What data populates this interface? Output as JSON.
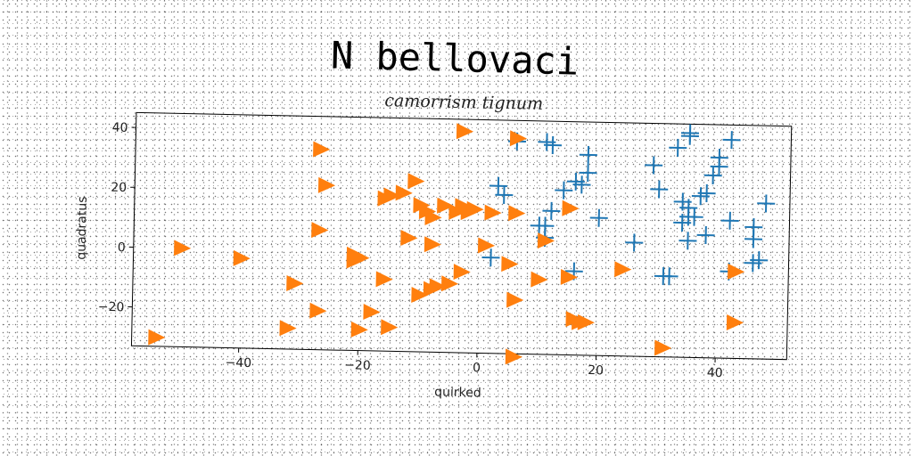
{
  "chart_data": {
    "type": "scatter",
    "title": "N bellovaci",
    "subtitle": "camorrism tignum",
    "xlabel": "quirked",
    "ylabel": "quadratus",
    "xlim": [
      -58,
      52
    ],
    "ylim": [
      -33,
      45
    ],
    "xticks": [
      -40,
      -20,
      0,
      20,
      40
    ],
    "yticks": [
      -20,
      0,
      20,
      40
    ],
    "grid": false,
    "series": [
      {
        "color": "#1f77b4",
        "marker": "plus",
        "points": [
          [
            6,
            38
          ],
          [
            11,
            38
          ],
          [
            12,
            37
          ],
          [
            18,
            34
          ],
          [
            14,
            22
          ],
          [
            16,
            25
          ],
          [
            18,
            28
          ],
          [
            17,
            24
          ],
          [
            3,
            23
          ],
          [
            4,
            20
          ],
          [
            2,
            -1
          ],
          [
            10,
            10
          ],
          [
            11,
            10
          ],
          [
            12,
            15
          ],
          [
            11,
            6
          ],
          [
            16,
            -5
          ],
          [
            20,
            13
          ],
          [
            26,
            5
          ],
          [
            29,
            31
          ],
          [
            30,
            23
          ],
          [
            33,
            37
          ],
          [
            35,
            42
          ],
          [
            35,
            41
          ],
          [
            40,
            34
          ],
          [
            40,
            31
          ],
          [
            39,
            28
          ],
          [
            38,
            22
          ],
          [
            37,
            21
          ],
          [
            34,
            19
          ],
          [
            35,
            17
          ],
          [
            34,
            12
          ],
          [
            35,
            14
          ],
          [
            36,
            14
          ],
          [
            35,
            6
          ],
          [
            38,
            8
          ],
          [
            31,
            -6
          ],
          [
            32,
            -6
          ],
          [
            42,
            40
          ],
          [
            42,
            13
          ],
          [
            46,
            11
          ],
          [
            46,
            7
          ],
          [
            48,
            19
          ],
          [
            42,
            -4
          ],
          [
            46,
            -1
          ],
          [
            47,
            0
          ]
        ]
      },
      {
        "color": "#ff7f0e",
        "marker": "triangle-right",
        "points": [
          [
            -27,
            34
          ],
          [
            -26,
            22
          ],
          [
            -27,
            7
          ],
          [
            -16,
            18
          ],
          [
            -15,
            19
          ],
          [
            -13,
            20
          ],
          [
            -11,
            24
          ],
          [
            -10,
            16
          ],
          [
            -9,
            14
          ],
          [
            -8,
            12
          ],
          [
            -6,
            16
          ],
          [
            -4,
            14
          ],
          [
            -3,
            16
          ],
          [
            -2,
            14
          ],
          [
            -1,
            15
          ],
          [
            2,
            14
          ],
          [
            6,
            14
          ],
          [
            6,
            39
          ],
          [
            -3,
            41
          ],
          [
            -12,
            5
          ],
          [
            -8,
            3
          ],
          [
            1,
            3
          ],
          [
            5,
            -3
          ],
          [
            -3,
            -6
          ],
          [
            -5,
            -10
          ],
          [
            -7,
            -11
          ],
          [
            -8,
            -12
          ],
          [
            -10,
            -14
          ],
          [
            -16,
            -9
          ],
          [
            -20,
            -2
          ],
          [
            -21,
            -3
          ],
          [
            -21,
            -1
          ],
          [
            -31,
            -11
          ],
          [
            -27,
            -20
          ],
          [
            -18,
            -20
          ],
          [
            -20,
            -26
          ],
          [
            -15,
            -25
          ],
          [
            -32,
            -26
          ],
          [
            -50,
            0
          ],
          [
            -40,
            -3
          ],
          [
            -54,
            -30
          ],
          [
            6,
            -15
          ],
          [
            10,
            -8
          ],
          [
            15,
            -7
          ],
          [
            16,
            -21
          ],
          [
            17,
            -22
          ],
          [
            18,
            -22
          ],
          [
            24,
            -4
          ],
          [
            43,
            -4
          ],
          [
            43,
            -21
          ],
          [
            31,
            -30
          ],
          [
            6,
            -34
          ],
          [
            11,
            5
          ],
          [
            15,
            16
          ]
        ]
      }
    ]
  }
}
